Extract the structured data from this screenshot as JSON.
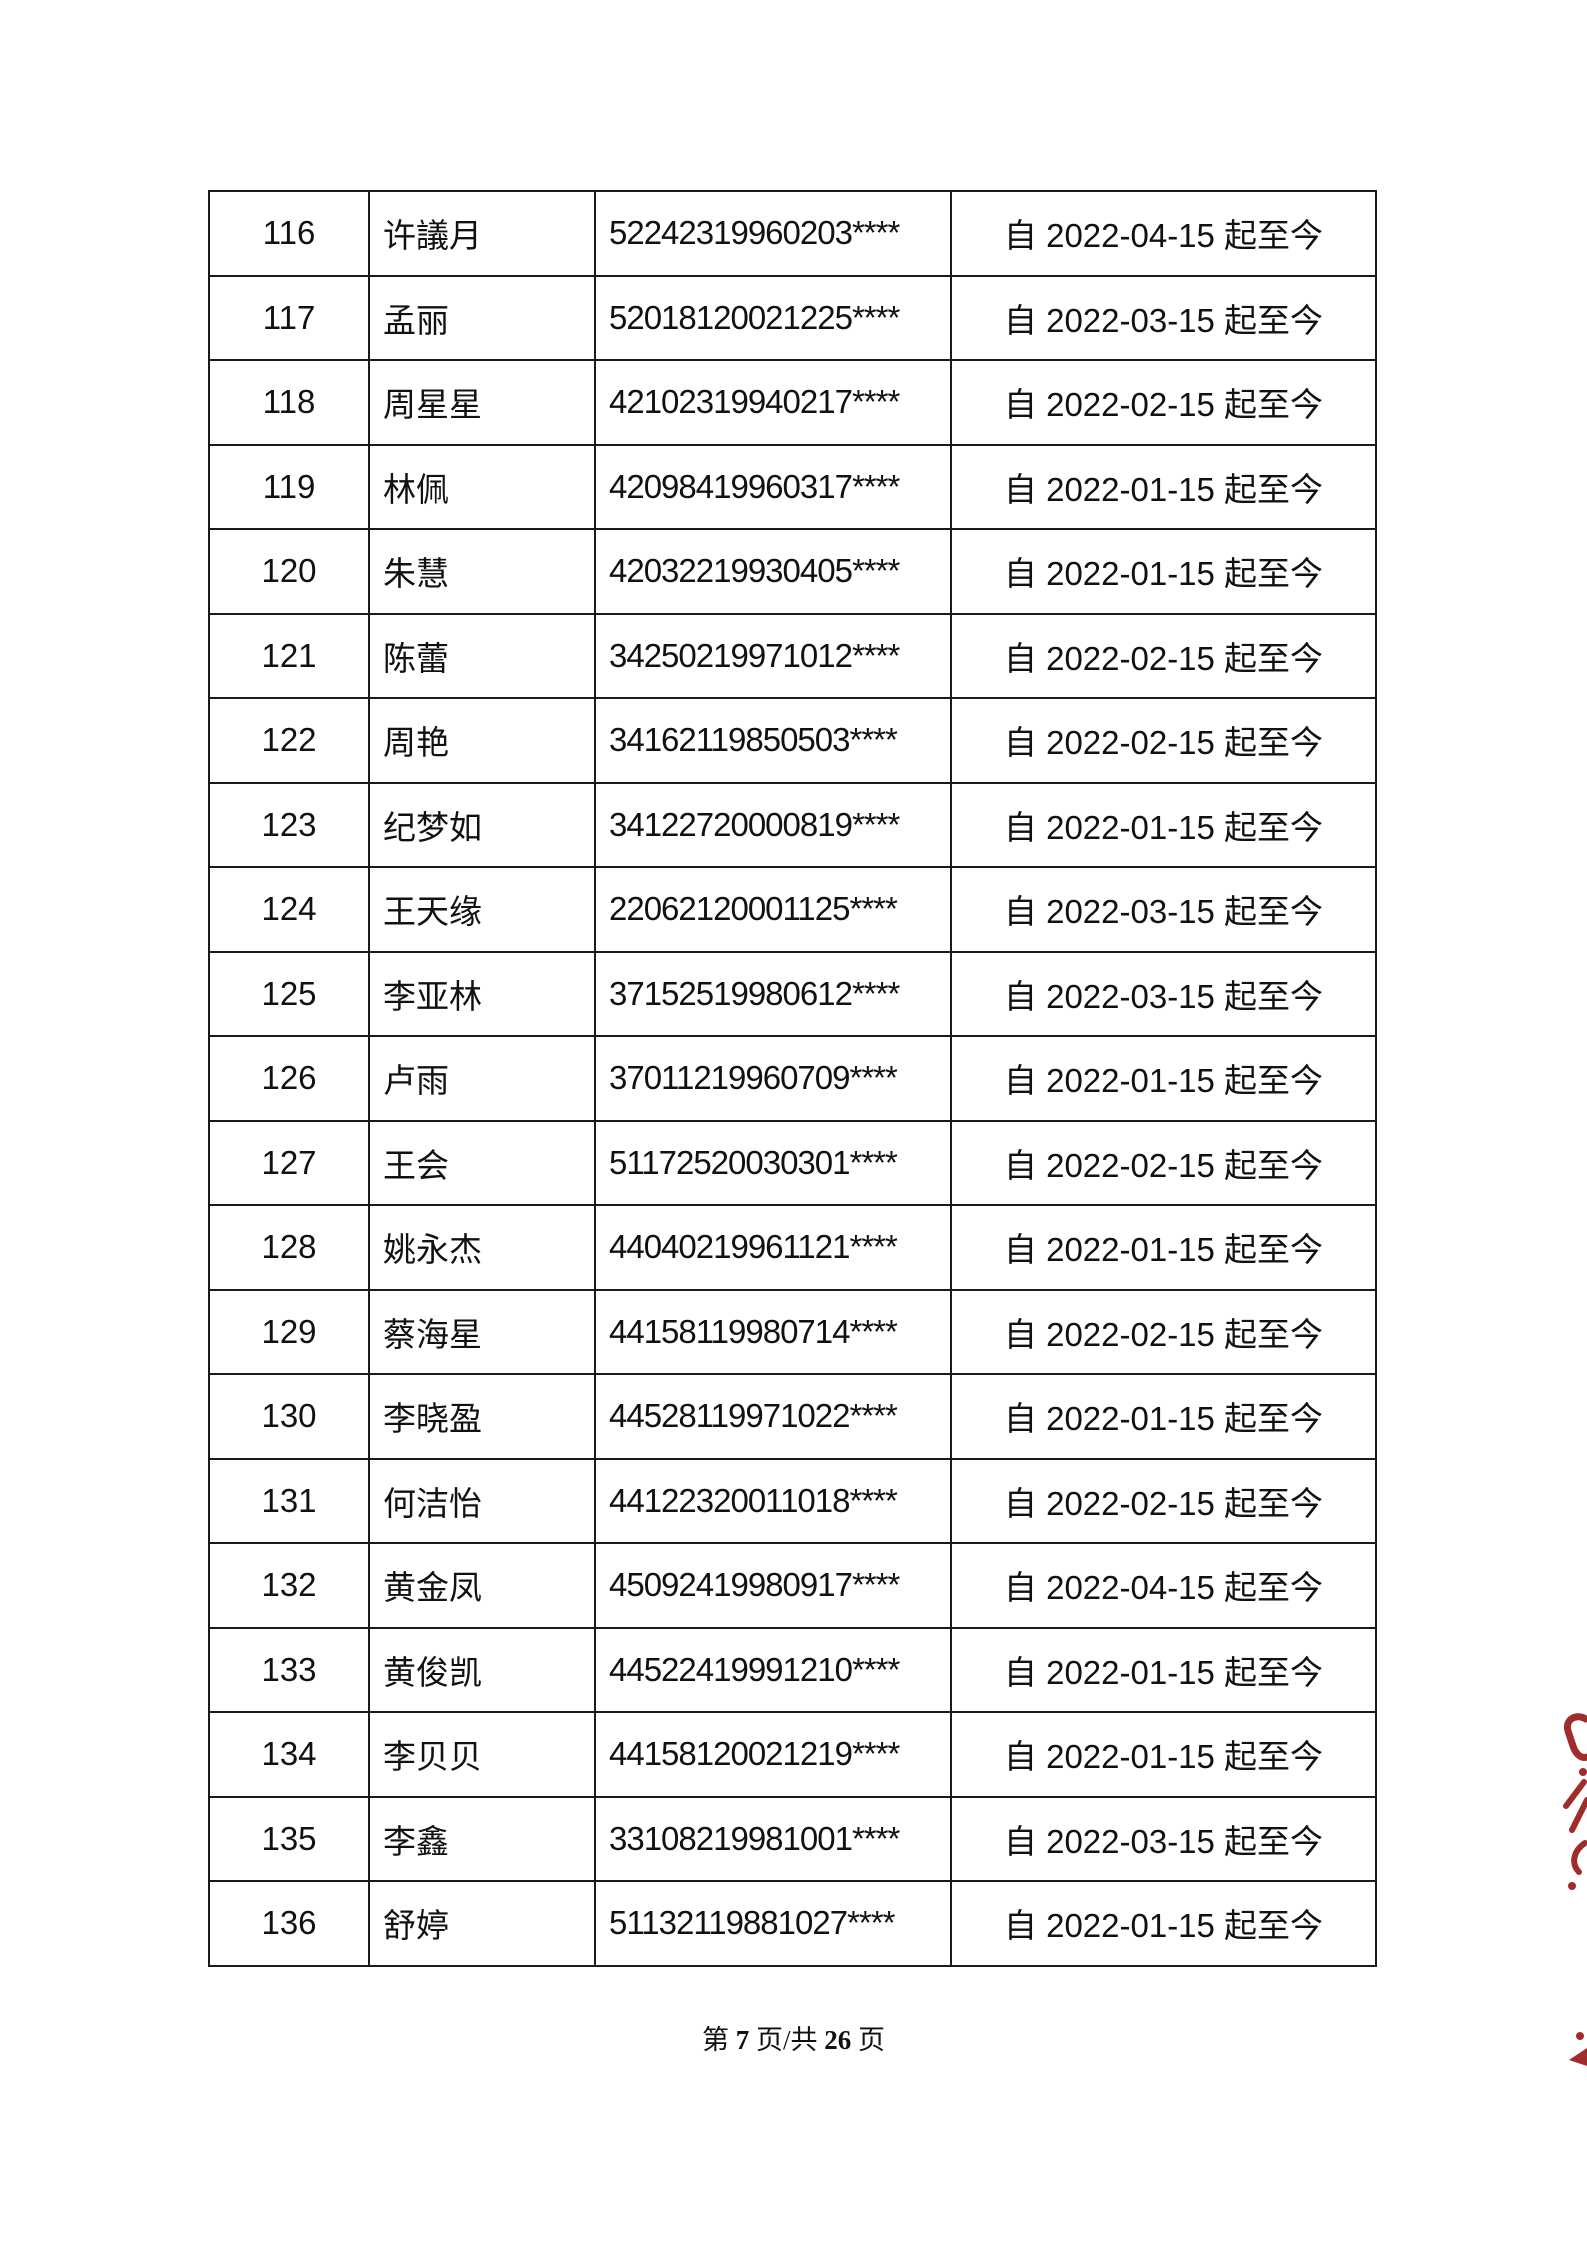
{
  "table": {
    "rows": [
      {
        "no": "116",
        "name": "许議月",
        "id": "52242319960203****",
        "period": "自 2022-04-15 起至今"
      },
      {
        "no": "117",
        "name": "孟丽",
        "id": "52018120021225****",
        "period": "自 2022-03-15 起至今"
      },
      {
        "no": "118",
        "name": "周星星",
        "id": "42102319940217****",
        "period": "自 2022-02-15 起至今"
      },
      {
        "no": "119",
        "name": "林佩",
        "id": "42098419960317****",
        "period": "自 2022-01-15 起至今"
      },
      {
        "no": "120",
        "name": "朱慧",
        "id": "42032219930405****",
        "period": "自 2022-01-15 起至今"
      },
      {
        "no": "121",
        "name": "陈蕾",
        "id": "34250219971012****",
        "period": "自 2022-02-15 起至今"
      },
      {
        "no": "122",
        "name": "周艳",
        "id": "34162119850503****",
        "period": "自 2022-02-15 起至今"
      },
      {
        "no": "123",
        "name": "纪梦如",
        "id": "34122720000819****",
        "period": "自 2022-01-15 起至今"
      },
      {
        "no": "124",
        "name": "王天缘",
        "id": "22062120001125****",
        "period": "自 2022-03-15 起至今"
      },
      {
        "no": "125",
        "name": "李亚林",
        "id": "37152519980612****",
        "period": "自 2022-03-15 起至今"
      },
      {
        "no": "126",
        "name": "卢雨",
        "id": "37011219960709****",
        "period": "自 2022-01-15 起至今"
      },
      {
        "no": "127",
        "name": "王会",
        "id": "51172520030301****",
        "period": "自 2022-02-15 起至今"
      },
      {
        "no": "128",
        "name": "姚永杰",
        "id": "44040219961121****",
        "period": "自 2022-01-15 起至今"
      },
      {
        "no": "129",
        "name": "蔡海星",
        "id": "44158119980714****",
        "period": "自 2022-02-15 起至今"
      },
      {
        "no": "130",
        "name": "李晓盈",
        "id": "44528119971022****",
        "period": "自 2022-01-15 起至今"
      },
      {
        "no": "131",
        "name": "何洁怡",
        "id": "44122320011018****",
        "period": "自 2022-02-15 起至今"
      },
      {
        "no": "132",
        "name": "黄金凤",
        "id": "45092419980917****",
        "period": "自 2022-04-15 起至今"
      },
      {
        "no": "133",
        "name": "黄俊凯",
        "id": "44522419991210****",
        "period": "自 2022-01-15 起至今"
      },
      {
        "no": "134",
        "name": "李贝贝",
        "id": "44158120021219****",
        "period": "自 2022-01-15 起至今"
      },
      {
        "no": "135",
        "name": "李鑫",
        "id": "33108219981001****",
        "period": "自 2022-03-15 起至今"
      },
      {
        "no": "136",
        "name": "舒婷",
        "id": "51132119881027****",
        "period": "自 2022-01-15 起至今"
      }
    ]
  },
  "footer": {
    "prefix": "第",
    "page_number": "7",
    "separator": "页/共",
    "total_pages": "26",
    "suffix": "页"
  },
  "colors": {
    "red_ink": "#a02c2c",
    "text": "#111111",
    "border": "#1a1a1a"
  }
}
